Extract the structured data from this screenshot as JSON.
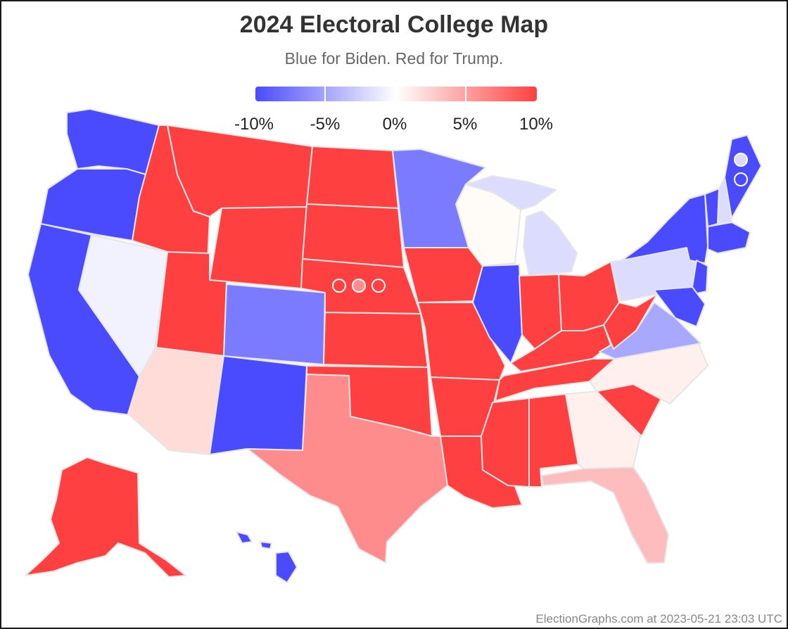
{
  "title": "2024 Electoral College Map",
  "subtitle": "Blue for Biden. Red for Trump.",
  "legend": {
    "ticks": [
      "-10%",
      "-5%",
      "0%",
      "5%",
      "10%"
    ],
    "colors": {
      "biden_strong": "#4a4aff",
      "neutral": "#ffffff",
      "trump_strong": "#ff4040"
    }
  },
  "footer": "ElectionGraphs.com at 2023-05-21 23:03 UTC",
  "state_colors": {
    "solid_dem": "#4a4aff",
    "likely_dem": "#7b7bff",
    "lean_dem": "#a8a8ff",
    "tilt_dem": "#dcdcff",
    "tossup_dem": "#f2f2ff",
    "tossup_neutral": "#fffcf8",
    "tossup_rep": "#fff0ee",
    "tilt_rep": "#ffdcd8",
    "lean_rep": "#ffbcbc",
    "likely_rep": "#ff8c8c",
    "solid_rep": "#ff4040"
  }
}
